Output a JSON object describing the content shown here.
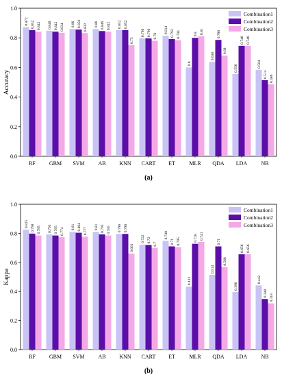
{
  "chart_data": [
    {
      "type": "bar",
      "panel_label": "(a)",
      "ylabel": "Accuracy",
      "ylim": [
        0,
        1.0
      ],
      "yticks": [
        "0.0",
        "0.2",
        "0.4",
        "0.6",
        "0.8",
        "1.0"
      ],
      "categories": [
        "RF",
        "GBM",
        "SVM",
        "AB",
        "KNN",
        "CART",
        "ET",
        "MLR",
        "QDA",
        "LDA",
        "NB"
      ],
      "legend_position": "top-right",
      "series": [
        {
          "name": "Combination1",
          "color": "#c9c4f5",
          "values": [
            0.872,
            0.848,
            0.86,
            0.86,
            0.852,
            0.796,
            0.814,
            0.6,
            0.638,
            0.556,
            0.584
          ],
          "labels": [
            "0.872",
            "0.848",
            "0.86",
            "0.86",
            "0.852",
            "0.796",
            "0.814",
            "0.6",
            "0.638",
            "0.556",
            "0.584"
          ]
        },
        {
          "name": "Combination2",
          "color": "#5b0fa8",
          "values": [
            0.852,
            0.842,
            0.856,
            0.846,
            0.852,
            0.796,
            0.792,
            0.8,
            0.786,
            0.746,
            0.514
          ],
          "labels": [
            "0.852",
            "0.842",
            "0.856",
            "0.846",
            "0.852",
            "0.796",
            "0.792",
            "0.8",
            "0.786",
            "0.746",
            "0.514"
          ]
        },
        {
          "name": "Combination3",
          "color": "#f4a9e6",
          "values": [
            0.842,
            0.834,
            0.832,
            0.842,
            0.75,
            0.78,
            0.784,
            0.81,
            0.68,
            0.746,
            0.486
          ],
          "labels": [
            "0.842",
            "0.834",
            "0.832",
            "0.842",
            "0.75",
            "0.78",
            "0.784",
            "0.81",
            "0.68",
            "0.746",
            "0.486"
          ]
        }
      ]
    },
    {
      "type": "bar",
      "panel_label": "(b)",
      "ylabel": "Kappa",
      "ylim": [
        0,
        1.0
      ],
      "yticks": [
        "0.0",
        "0.2",
        "0.4",
        "0.6",
        "0.8",
        "1.0"
      ],
      "categories": [
        "RF",
        "GBM",
        "SVM",
        "AB",
        "KNN",
        "CART",
        "ET",
        "MLR",
        "QDA",
        "LDA",
        "NB"
      ],
      "legend_position": "top-right",
      "series": [
        {
          "name": "Combination1",
          "color": "#c9c4f5",
          "values": [
            0.825,
            0.793,
            0.81,
            0.81,
            0.796,
            0.722,
            0.748,
            0.433,
            0.514,
            0.396,
            0.442
          ],
          "labels": [
            "0.825",
            "0.793",
            "0.81",
            "0.81",
            "0.796",
            "0.722",
            "0.748",
            "0.433",
            "0.514",
            "0.396",
            "0.442"
          ]
        },
        {
          "name": "Combination2",
          "color": "#5b0fa8",
          "values": [
            0.798,
            0.785,
            0.804,
            0.793,
            0.796,
            0.72,
            0.71,
            0.728,
            0.71,
            0.656,
            0.348
          ],
          "labels": [
            "0.798",
            "0.785",
            "0.804",
            "0.793",
            "0.796",
            "0.72",
            "0.71",
            "0.728",
            "0.71",
            "0.656",
            "0.348"
          ]
        },
        {
          "name": "Combination3",
          "color": "#f4a9e6",
          "values": [
            0.785,
            0.774,
            0.777,
            0.785,
            0.661,
            0.7,
            0.705,
            0.741,
            0.568,
            0.656,
            0.318
          ],
          "labels": [
            "0.785",
            "0.774",
            "0.777",
            "0.785",
            "0.661",
            "0.7",
            "0.705",
            "0.741",
            "0.568",
            "0.656",
            "0.318"
          ]
        }
      ]
    }
  ]
}
